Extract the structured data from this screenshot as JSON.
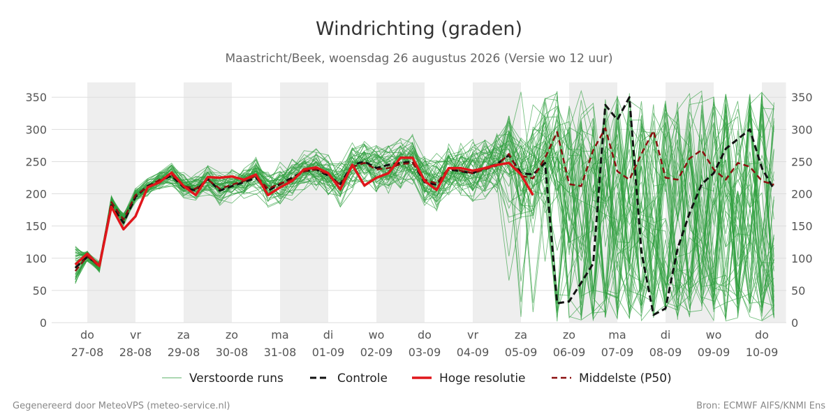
{
  "header": {
    "title": "Windrichting (graden)",
    "subtitle": "Maastricht/Beek, woensdag 26 augustus 2026 (Versie wo 12 uur)"
  },
  "footer": {
    "left": "Gegenereerd door MeteoVPS (meteo-service.nl)",
    "right": "Bron: ECMWF AIFS/KNMI Ens"
  },
  "colors": {
    "ensemble": "#2e9e3e",
    "control": "#111111",
    "hires": "#e0161b",
    "median": "#8b0f0f",
    "weekend_band": "#eeeeee",
    "grid": "#dddddd"
  },
  "chart_data": {
    "type": "line",
    "title": "Windrichting (graden)",
    "x_unit": "days since 27-08 00h",
    "xlim": [
      -0.7,
      14.3
    ],
    "ylim": [
      0,
      360
    ],
    "yticks": [
      0,
      50,
      100,
      150,
      200,
      250,
      300,
      350
    ],
    "grid": "horizontal",
    "legend_position": "bottom",
    "x_ticks": [
      {
        "day": "do",
        "date": "27-08"
      },
      {
        "day": "vr",
        "date": "28-08"
      },
      {
        "day": "za",
        "date": "29-08"
      },
      {
        "day": "zo",
        "date": "30-08"
      },
      {
        "day": "ma",
        "date": "31-08"
      },
      {
        "day": "di",
        "date": "01-09"
      },
      {
        "day": "wo",
        "date": "02-09"
      },
      {
        "day": "do",
        "date": "03-09"
      },
      {
        "day": "vr",
        "date": "04-09"
      },
      {
        "day": "za",
        "date": "05-09"
      },
      {
        "day": "zo",
        "date": "06-09"
      },
      {
        "day": "ma",
        "date": "07-09"
      },
      {
        "day": "di",
        "date": "08-09"
      },
      {
        "day": "wo",
        "date": "09-09"
      },
      {
        "day": "do",
        "date": "10-09"
      }
    ],
    "shaded_bands": [
      [
        0,
        1
      ],
      [
        2,
        3
      ],
      [
        4,
        5
      ],
      [
        6,
        7
      ],
      [
        8,
        9
      ],
      [
        10,
        11
      ],
      [
        12,
        13
      ],
      [
        14,
        14.5
      ]
    ],
    "legend": [
      {
        "key": "ensemble",
        "label": "Verstoorde runs"
      },
      {
        "key": "control",
        "label": "Controle"
      },
      {
        "key": "hires",
        "label": "Hoge resolutie"
      },
      {
        "key": "median",
        "label": "Middelste (P50)"
      }
    ],
    "ensemble_member_count": 50,
    "series": [
      {
        "key": "hires",
        "name": "Hoge resolutie",
        "x": [
          -0.25,
          0,
          0.25,
          0.5,
          0.75,
          1,
          1.25,
          1.5,
          1.75,
          2,
          2.25,
          2.5,
          2.75,
          3,
          3.25,
          3.5,
          3.75,
          4,
          4.25,
          4.5,
          4.75,
          5,
          5.25,
          5.5,
          5.75,
          6,
          6.25,
          6.5,
          6.75,
          7,
          7.25,
          7.5,
          7.75,
          8,
          8.25,
          8.5,
          8.75,
          9,
          9.25
        ],
        "values": [
          90,
          107,
          88,
          180,
          145,
          165,
          210,
          218,
          233,
          212,
          198,
          226,
          225,
          227,
          222,
          230,
          198,
          210,
          220,
          238,
          241,
          232,
          207,
          245,
          213,
          225,
          232,
          256,
          256,
          220,
          206,
          240,
          240,
          236,
          240,
          245,
          248,
          230,
          198
        ]
      },
      {
        "key": "control",
        "name": "Controle",
        "x": [
          -0.25,
          0,
          0.25,
          0.5,
          0.75,
          1,
          1.25,
          1.5,
          1.75,
          2,
          2.25,
          2.5,
          2.75,
          3,
          3.25,
          3.5,
          3.75,
          4,
          4.25,
          4.5,
          4.75,
          5,
          5.25,
          5.5,
          5.75,
          6,
          6.25,
          6.5,
          6.75,
          7,
          7.25,
          7.5,
          7.75,
          8,
          8.25,
          8.5,
          8.75,
          9,
          9.25,
          9.5,
          9.75,
          10,
          10.25,
          10.5,
          10.75,
          11,
          11.25,
          11.5,
          11.75,
          12,
          12.25,
          12.5,
          12.75,
          13,
          13.25,
          13.5,
          13.75,
          14,
          14.25
        ],
        "values": [
          85,
          102,
          90,
          182,
          155,
          195,
          212,
          220,
          228,
          210,
          205,
          223,
          205,
          212,
          218,
          225,
          205,
          215,
          225,
          235,
          238,
          228,
          215,
          245,
          250,
          240,
          245,
          248,
          250,
          218,
          214,
          238,
          235,
          232,
          240,
          246,
          260,
          232,
          230,
          248,
          30,
          33,
          62,
          92,
          338,
          315,
          350,
          110,
          12,
          22,
          115,
          170,
          215,
          232,
          270,
          285,
          300,
          240,
          207
        ]
      },
      {
        "key": "median",
        "name": "Middelste (P50)",
        "x": [
          -0.25,
          0,
          0.25,
          0.5,
          0.75,
          1,
          1.25,
          1.5,
          1.75,
          2,
          2.25,
          2.5,
          2.75,
          3,
          3.25,
          3.5,
          3.75,
          4,
          4.25,
          4.5,
          4.75,
          5,
          5.25,
          5.5,
          5.75,
          6,
          6.25,
          6.5,
          6.75,
          7,
          7.25,
          7.5,
          7.75,
          8,
          8.25,
          8.5,
          8.75,
          9,
          9.25,
          9.5,
          9.75,
          10,
          10.25,
          10.5,
          10.75,
          11,
          11.25,
          11.5,
          11.75,
          12,
          12.25,
          12.5,
          12.75,
          13,
          13.25,
          13.5,
          13.75,
          14,
          14.25
        ],
        "values": [
          80,
          103,
          87,
          187,
          160,
          198,
          210,
          222,
          230,
          212,
          208,
          222,
          208,
          214,
          220,
          228,
          208,
          216,
          222,
          235,
          238,
          230,
          214,
          242,
          248,
          238,
          240,
          246,
          248,
          222,
          216,
          240,
          236,
          232,
          238,
          244,
          262,
          228,
          224,
          256,
          296,
          215,
          212,
          268,
          302,
          235,
          222,
          262,
          298,
          225,
          222,
          255,
          268,
          238,
          222,
          248,
          242,
          220,
          214
        ]
      }
    ]
  }
}
